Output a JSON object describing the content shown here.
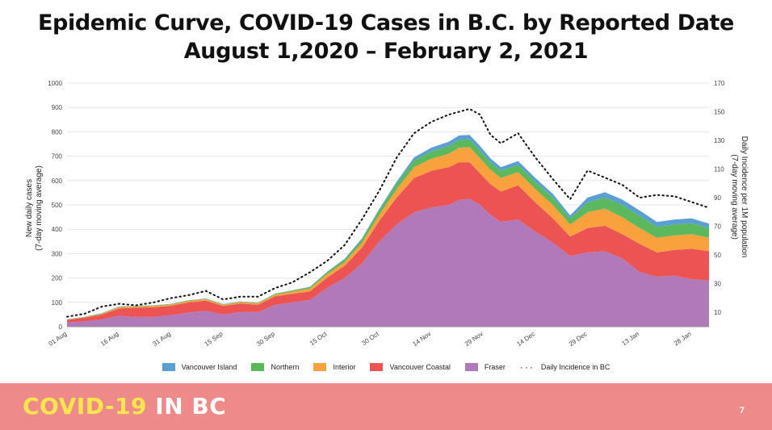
{
  "slide": {
    "title_line1": "Epidemic Curve, COVID-19 Cases in B.C. by Reported Date",
    "title_line2": "August 1,2020 – February 2, 2021",
    "brand_part1": "COVID-19",
    "brand_part2": "IN BC",
    "page_number": "7",
    "footer_color": "#ef8a8a",
    "brand_color": "#fbe64c"
  },
  "chart_data": {
    "type": "area",
    "stacked": true,
    "ylabel": "New daily cases\n(7-day moving average)",
    "y2label": "Daily Incidence per 1M population\n(7-day moving average)",
    "ylim": [
      0,
      1000
    ],
    "y2lim": [
      0,
      170
    ],
    "y_ticks": [
      0,
      100,
      200,
      300,
      400,
      500,
      600,
      700,
      800,
      900,
      1000
    ],
    "y2_ticks": [
      10,
      30,
      50,
      70,
      90,
      110,
      130,
      150,
      170
    ],
    "grid": true,
    "legend_position": "bottom",
    "x_tick_labels": [
      "01 Aug",
      "16 Aug",
      "31 Aug",
      "15 Sep",
      "30 Sep",
      "15 Oct",
      "30 Oct",
      "14 Nov",
      "29 Nov",
      "14 Dec",
      "29 Dec",
      "13 Jan",
      "28 Jan"
    ],
    "x_days": [
      0,
      15,
      30,
      45,
      60,
      75,
      90,
      105,
      120,
      135,
      150,
      165,
      180
    ],
    "x": [
      0,
      5,
      10,
      15,
      20,
      25,
      30,
      35,
      40,
      45,
      50,
      55,
      60,
      65,
      70,
      75,
      80,
      85,
      90,
      95,
      100,
      105,
      110,
      113,
      116,
      119,
      122,
      125,
      130,
      135,
      140,
      145,
      150,
      155,
      160,
      165,
      170,
      175,
      180,
      185
    ],
    "series": [
      {
        "name": "Fraser",
        "color": "#b07ab8",
        "values": [
          18,
          22,
          30,
          45,
          40,
          40,
          48,
          58,
          65,
          50,
          60,
          60,
          90,
          100,
          110,
          160,
          200,
          260,
          350,
          420,
          470,
          490,
          500,
          520,
          525,
          500,
          460,
          430,
          440,
          390,
          345,
          290,
          305,
          310,
          280,
          225,
          205,
          210,
          195,
          190
        ]
      },
      {
        "name": "Vancouver Coastal",
        "color": "#ec5454",
        "values": [
          10,
          15,
          20,
          30,
          38,
          40,
          38,
          42,
          42,
          35,
          35,
          30,
          35,
          35,
          35,
          42,
          50,
          65,
          85,
          110,
          140,
          150,
          155,
          155,
          150,
          130,
          125,
          125,
          140,
          120,
          100,
          80,
          100,
          105,
          100,
          115,
          100,
          105,
          125,
          120
        ]
      },
      {
        "name": "Interior",
        "color": "#f8a13d",
        "values": [
          1,
          2,
          3,
          5,
          5,
          5,
          5,
          6,
          6,
          5,
          6,
          6,
          7,
          10,
          12,
          14,
          16,
          20,
          26,
          35,
          45,
          50,
          55,
          60,
          62,
          62,
          60,
          55,
          55,
          55,
          55,
          50,
          65,
          70,
          70,
          65,
          60,
          60,
          60,
          55
        ]
      },
      {
        "name": "Northern",
        "color": "#5cb85c",
        "values": [
          1,
          1,
          2,
          2,
          2,
          2,
          2,
          2,
          2,
          2,
          2,
          2,
          3,
          4,
          5,
          8,
          10,
          14,
          18,
          22,
          28,
          30,
          32,
          32,
          32,
          32,
          30,
          30,
          30,
          30,
          30,
          25,
          40,
          45,
          50,
          50,
          45,
          45,
          45,
          40
        ]
      },
      {
        "name": "Vancouver Island",
        "color": "#5a9fd4",
        "values": [
          1,
          1,
          1,
          1,
          1,
          1,
          1,
          1,
          1,
          1,
          1,
          1,
          1,
          1,
          2,
          2,
          3,
          4,
          5,
          8,
          12,
          15,
          17,
          18,
          18,
          18,
          16,
          15,
          15,
          15,
          15,
          12,
          20,
          22,
          22,
          22,
          20,
          20,
          20,
          18
        ]
      }
    ],
    "incidence": {
      "name": "Daily Incidence in BC",
      "color": "#111111",
      "values": [
        7,
        9,
        14,
        16,
        15,
        17,
        20,
        22,
        25,
        19,
        21,
        21,
        27,
        31,
        38,
        46,
        57,
        75,
        95,
        118,
        135,
        143,
        148,
        150,
        152,
        148,
        134,
        128,
        135,
        118,
        103,
        89,
        109,
        104,
        99,
        90,
        92,
        91,
        87,
        83
      ]
    }
  }
}
